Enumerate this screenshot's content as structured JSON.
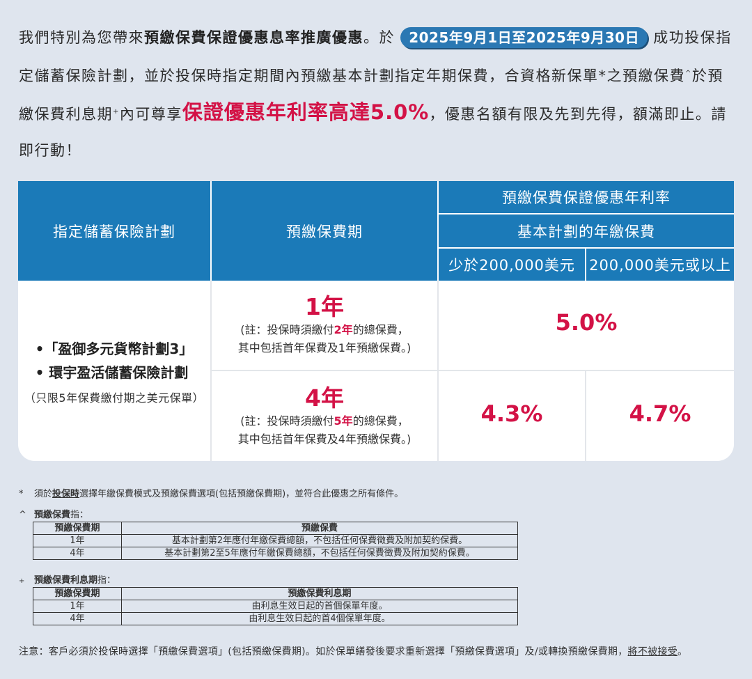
{
  "intro": {
    "p1": "我們特別為您帶來",
    "bold_title": "預繳保費保證優惠息率推廣優惠",
    "p2": "。於",
    "date_range": "2025年9月1日至2025年9月30日",
    "p3": "成功投保指定儲蓄保險計劃，並於投保時指定期間內預繳基本計劃指定年期保費，合資格新保單*之預繳保費",
    "sup1": "^",
    "p4": "於預繳保費利息期",
    "sup2": "+",
    "p5": "內可尊享",
    "highlight": "保證優惠年利率高達5.0%",
    "p6": "，優惠名額有限及先到先得，額滿即止。請即行動！"
  },
  "table": {
    "col1_header": "指定儲蓄保險計劃",
    "col2_header": "預繳保費期",
    "rate_header": "預繳保費保證優惠年利率",
    "premium_header": "基本計劃的年繳保費",
    "band1": "少於200,000美元",
    "band2": "200,000美元或以上",
    "plans": [
      "•「盈御多元貨幣計劃3」",
      "•  環宇盈活儲蓄保險計劃"
    ],
    "plan_note": "（只限5年保費繳付期之美元保單）",
    "rows": [
      {
        "term": "1年",
        "note_a": "(註：投保時須繳付",
        "note_bold": "2年",
        "note_b": "的總保費，",
        "note_c": "其中包括首年保費及1年預繳保費。)",
        "rate": "5.0%"
      },
      {
        "term": "4年",
        "note_a": "(註：投保時須繳付",
        "note_bold": "5年",
        "note_b": "的總保費，",
        "note_c": "其中包括首年保費及4年預繳保費。)",
        "rate1": "4.3%",
        "rate2": "4.7%"
      }
    ]
  },
  "notes": {
    "n1_mark": "*",
    "n1_a": "須於",
    "n1_u": "投保時",
    "n1_b": "選擇年繳保費模式及預繳保費選項(包括預繳保費期)，並符合此優惠之所有條件。",
    "n2_mark": "^",
    "n2_title": "預繳保費",
    "n2_suffix": "指：",
    "t1_head": [
      "預繳保費期",
      "預繳保費"
    ],
    "t1_rows": [
      [
        "1年",
        "基本計劃第2年應付年繳保費總額，不包括任何保費徵費及附加契約保費。"
      ],
      [
        "4年",
        "基本計劃第2至5年應付年繳保費總額，不包括任何保費徵費及附加契約保費。"
      ]
    ],
    "n3_mark": "+",
    "n3_title": "預繳保費利息期",
    "n3_suffix": "指：",
    "t2_head": [
      "預繳保費期",
      "預繳保費利息期"
    ],
    "t2_rows": [
      [
        "1年",
        "由利息生效日起的首個保單年度。"
      ],
      [
        "4年",
        "由利息生效日起的首4個保單年度。"
      ]
    ]
  },
  "footer": {
    "a": "注意：客戶必須於投保時選擇「預繳保費選項」(包括預繳保費期)。如於保單繕發後要求重新選擇「預繳保費選項」及/或轉換預繳保費期，",
    "ul": "將不被接受",
    "b": "。"
  },
  "colors": {
    "brand_blue": "#1b7ab8",
    "accent_red": "#d31246",
    "background": "#dfe5ee"
  }
}
